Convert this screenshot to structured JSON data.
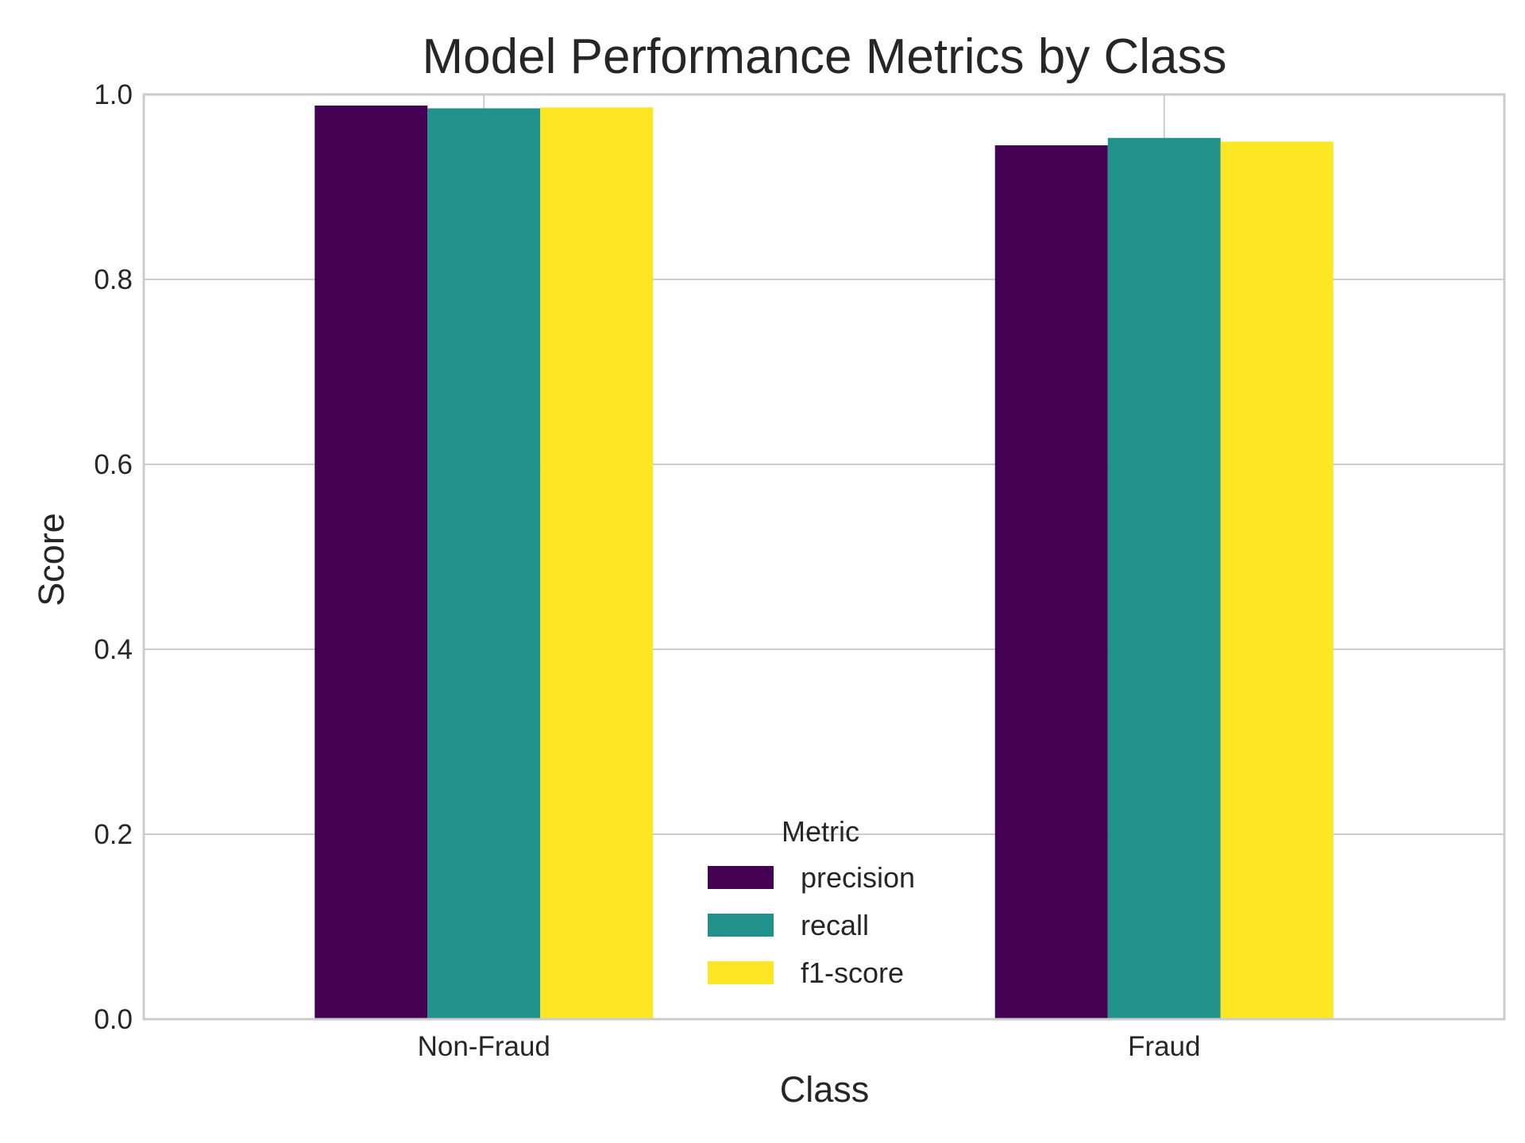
{
  "chart_data": {
    "type": "bar",
    "title": "Model Performance Metrics by Class",
    "xlabel": "Class",
    "ylabel": "Score",
    "categories": [
      "Non-Fraud",
      "Fraud"
    ],
    "ylim": [
      0,
      1.0
    ],
    "yticks": [
      "0.0",
      "0.2",
      "0.4",
      "0.6",
      "0.8",
      "1.0"
    ],
    "grid": true,
    "legend_title": "Metric",
    "legend_position": "lower-center",
    "series": [
      {
        "name": "precision",
        "values": [
          0.988,
          0.945
        ],
        "color": "#440154"
      },
      {
        "name": "recall",
        "values": [
          0.985,
          0.953
        ],
        "color": "#21918c"
      },
      {
        "name": "f1-score",
        "values": [
          0.986,
          0.949
        ],
        "color": "#fde725"
      }
    ]
  }
}
